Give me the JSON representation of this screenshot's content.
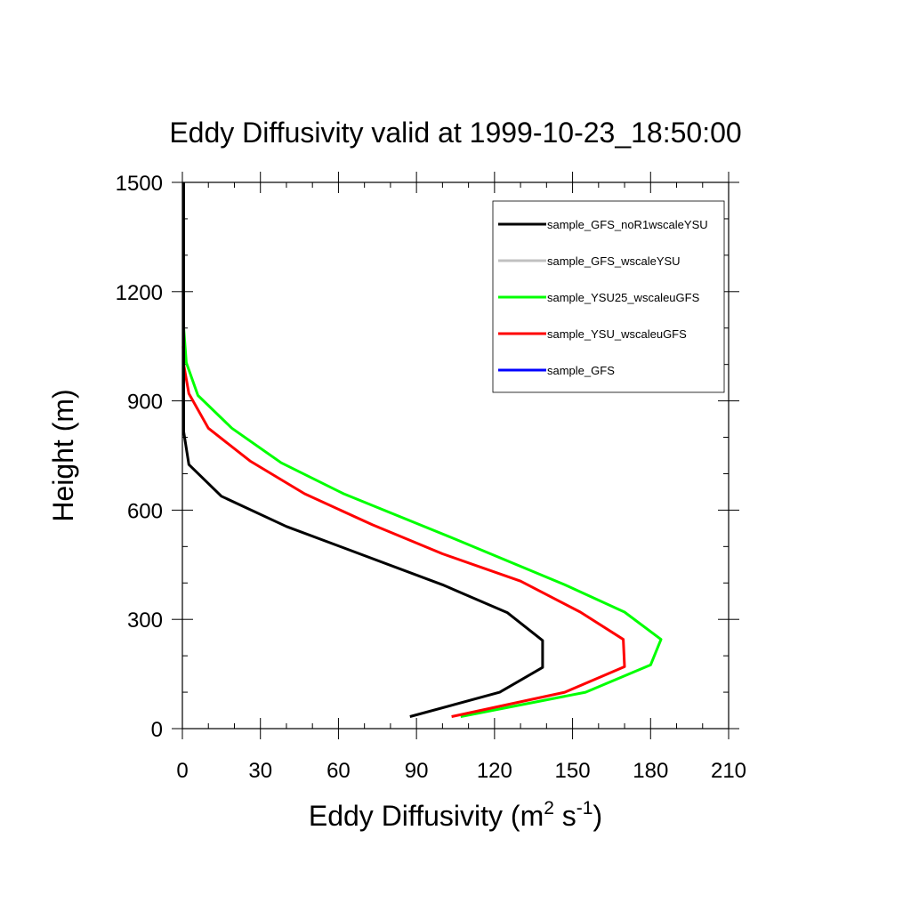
{
  "chart_data": {
    "type": "line",
    "title": "Eddy Diffusivity valid at 1999-10-23_18:50:00",
    "xlabel": {
      "base": "Eddy Diffusivity (m",
      "sup1": "2",
      "mid": " s",
      "sup2": "-1",
      "end": ")"
    },
    "ylabel": "Height (m)",
    "xlim": [
      0,
      210
    ],
    "ylim": [
      0,
      1500
    ],
    "x_ticks": [
      0,
      30,
      60,
      90,
      120,
      150,
      180,
      210
    ],
    "y_ticks": [
      0,
      300,
      600,
      900,
      1200,
      1500
    ],
    "legend_position": "top-right",
    "series": [
      {
        "name": "sample_GFS_noR1wscaleYSU",
        "color": "#000000",
        "x": [
          87.5,
          122,
          138.5,
          138.5,
          125,
          100,
          40,
          15,
          2.5,
          0.5,
          0.5,
          0.5,
          0.5,
          0.5,
          0.5
        ],
        "y": [
          33,
          100,
          168,
          242,
          318,
          395,
          555,
          638,
          725,
          815,
          900,
          1000,
          1100,
          1300,
          1500
        ]
      },
      {
        "name": "sample_GFS_wscaleYSU",
        "color": "#c0c0c0",
        "x": [
          0.5,
          0.5
        ],
        "y": [
          1000,
          1500
        ]
      },
      {
        "name": "sample_YSU25_wscaleuGFS",
        "color": "#00ff00",
        "x": [
          107,
          155,
          180,
          184,
          170,
          147,
          105,
          62,
          38,
          19,
          6,
          1.5,
          0.5,
          0.5
        ],
        "y": [
          33,
          100,
          175,
          245,
          320,
          395,
          520,
          645,
          730,
          825,
          915,
          1005,
          1100,
          1500
        ]
      },
      {
        "name": "sample_YSU_wscaleuGFS",
        "color": "#ff0000",
        "x": [
          103.5,
          147,
          170,
          169.5,
          153,
          130,
          100,
          73,
          47,
          26,
          10,
          2.5,
          0.5,
          0.3
        ],
        "y": [
          33,
          100,
          170,
          245,
          320,
          405,
          480,
          560,
          645,
          735,
          825,
          920,
          1000,
          1050
        ]
      },
      {
        "name": "sample_GFS",
        "color": "#0000ff",
        "x": [],
        "y": []
      }
    ]
  }
}
